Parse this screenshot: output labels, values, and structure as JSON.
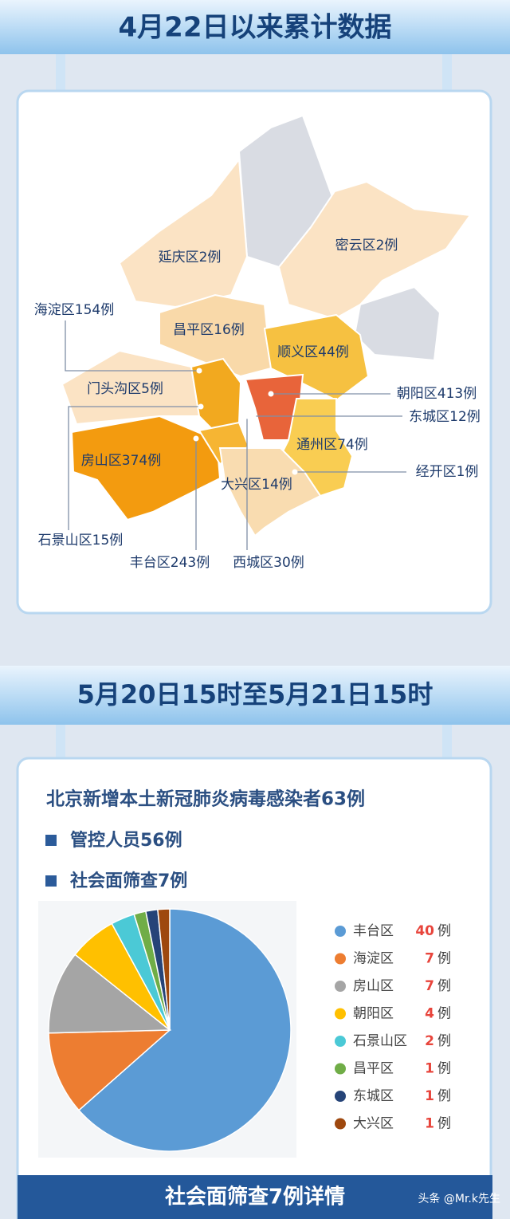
{
  "header_1": "4月22日以来累计数据",
  "map": {
    "districts": [
      "延庆区2例",
      "密云区2例",
      "海淀区154例",
      "昌平区16例",
      "顺义区44例",
      "门头沟区5例",
      "朝阳区413例",
      "东城区12例",
      "通州区74例",
      "房山区374例",
      "经开区1例",
      "大兴区14例",
      "石景山区15例",
      "丰台区243例",
      "西城区30例"
    ]
  },
  "header_2": "5月20日15时至5月21日15时",
  "summary": {
    "title": "北京新增本土新冠肺炎病毒感染者63例",
    "items": [
      "管控人员56例",
      "社会面筛查7例"
    ]
  },
  "chart_data": {
    "type": "pie",
    "categories": [
      "丰台区",
      "海淀区",
      "房山区",
      "朝阳区",
      "石景山区",
      "昌平区",
      "东城区",
      "大兴区"
    ],
    "values": [
      40,
      7,
      7,
      4,
      2,
      1,
      1,
      1
    ],
    "colors": [
      "#5b9bd5",
      "#ed7d31",
      "#a5a5a5",
      "#ffc000",
      "#4bc9d6",
      "#70ad47",
      "#264478",
      "#9e480e"
    ],
    "unit": "例"
  },
  "footer_title": "社会面筛查7例详情",
  "watermark": "头条 @Mr.k先生"
}
